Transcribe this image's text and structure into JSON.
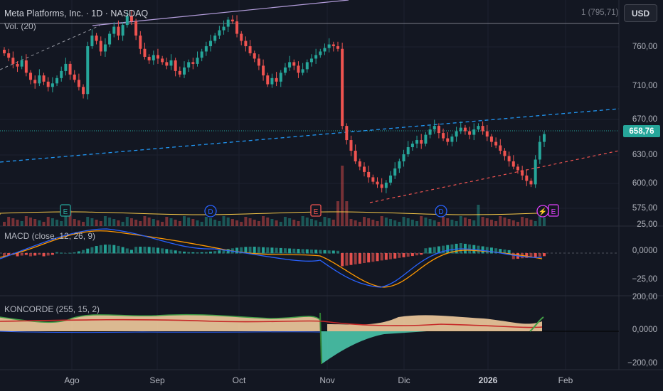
{
  "header": {
    "symbol_title": "Meta Platforms, Inc. · 1D · NASDAQ",
    "volume_label": "Vol. (20)",
    "scale_info": "1 (795,71)",
    "currency_button": "USD",
    "last_price": "658,76"
  },
  "price_axis": [
    "760,00",
    "710,00",
    "670,00",
    "630,00",
    "600,00",
    "575,00"
  ],
  "macd": {
    "label": "MACD (close, 12, 26, 9)",
    "axis": [
      "25,00",
      "0,0000",
      "−25,00"
    ]
  },
  "koncorde": {
    "label": "KONCORDE (255, 15, 2)",
    "axis": [
      "200,00",
      "0,0000",
      "−200,00"
    ]
  },
  "time_axis": [
    "Ago",
    "Sep",
    "Oct",
    "Nov",
    "Dic",
    "2026",
    "Feb"
  ],
  "event_markers": [
    {
      "letter": "E",
      "kind": "earnings",
      "color": "#26a69a"
    },
    {
      "letter": "D",
      "kind": "dividend",
      "color": "#2962ff"
    },
    {
      "letter": "E",
      "kind": "earnings",
      "color": "#ef5350"
    },
    {
      "letter": "D",
      "kind": "dividend",
      "color": "#2962ff"
    },
    {
      "letter": "⚡",
      "kind": "split",
      "color": "#e040fb"
    },
    {
      "letter": "E",
      "kind": "earnings",
      "color": "#e040fb"
    }
  ],
  "colors": {
    "background": "#131722",
    "up": "#26a69a",
    "down": "#ef5350",
    "accent_blue": "#2962ff"
  },
  "chart_data": {
    "type": "candlestick",
    "price_scale": [
      575,
      795.71
    ],
    "candles_close": [
      750,
      745,
      738,
      735,
      742,
      728,
      720,
      716,
      725,
      718,
      712,
      716,
      722,
      730,
      738,
      726,
      720,
      712,
      704,
      758,
      770,
      764,
      752,
      760,
      772,
      780,
      770,
      782,
      792,
      786,
      770,
      755,
      746,
      742,
      748,
      744,
      740,
      736,
      742,
      730,
      726,
      734,
      740,
      738,
      745,
      752,
      758,
      764,
      770,
      776,
      780,
      788,
      786,
      772,
      764,
      758,
      750,
      744,
      736,
      725,
      715,
      722,
      718,
      728,
      734,
      740,
      736,
      728,
      732,
      740,
      744,
      748,
      752,
      756,
      760,
      758,
      755,
      668,
      652,
      640,
      628,
      622,
      616,
      610,
      605,
      602,
      598,
      604,
      612,
      620,
      628,
      636,
      644,
      648,
      652,
      648,
      658,
      664,
      668,
      660,
      654,
      650,
      656,
      662,
      666,
      662,
      658,
      664,
      668,
      662,
      656,
      650,
      646,
      640,
      634,
      628,
      622,
      618,
      612,
      606,
      602,
      630,
      650,
      658.76
    ],
    "macd_range": [
      -25,
      25
    ],
    "koncorde_range": [
      -200,
      200
    ]
  }
}
